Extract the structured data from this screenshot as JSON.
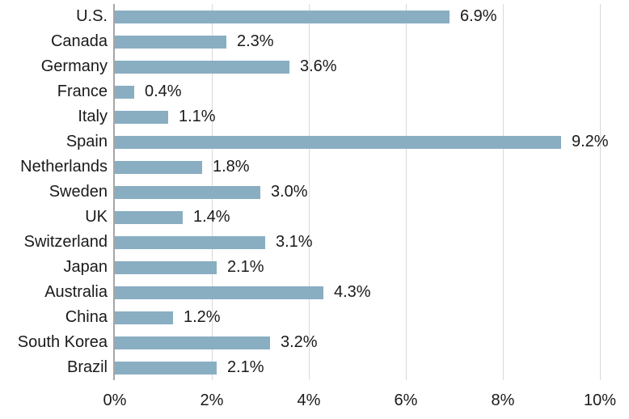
{
  "chart_data": {
    "type": "bar",
    "orientation": "horizontal",
    "title": "",
    "xlabel": "",
    "ylabel": "",
    "categories": [
      "U.S.",
      "Canada",
      "Germany",
      "France",
      "Italy",
      "Spain",
      "Netherlands",
      "Sweden",
      "UK",
      "Switzerland",
      "Japan",
      "Australia",
      "China",
      "South Korea",
      "Brazil"
    ],
    "values": [
      6.9,
      2.3,
      3.6,
      0.4,
      1.1,
      9.2,
      1.8,
      3.0,
      1.4,
      3.1,
      2.1,
      4.3,
      1.2,
      3.2,
      2.1
    ],
    "value_labels": [
      "6.9%",
      "2.3%",
      "3.6%",
      "0.4%",
      "1.1%",
      "9.2%",
      "1.8%",
      "3.0%",
      "1.4%",
      "3.1%",
      "2.1%",
      "4.3%",
      "1.2%",
      "3.2%",
      "2.1%"
    ],
    "xlim": [
      0,
      10
    ],
    "x_ticks": [
      "0%",
      "2%",
      "4%",
      "6%",
      "8%",
      "10%"
    ],
    "x_tick_values": [
      0,
      2,
      4,
      6,
      8,
      10
    ],
    "grid": "vertical-gridlines-on",
    "legend": "none",
    "colors": {
      "bar": "#89aec2",
      "gridline": "#d9d9d9",
      "axis_line": "#a6a6a6",
      "text": "#1a1a1a",
      "background": "#ffffff"
    }
  }
}
